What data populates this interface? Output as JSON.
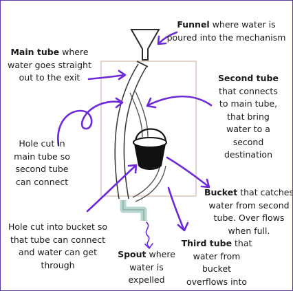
{
  "labels": {
    "funnel": {
      "title": "Funnel",
      "text": " where water  is\npoured into the mechanism"
    },
    "main": {
      "title": "Main tube",
      "text": " where\nwater goes straight\nout to the exit"
    },
    "second": {
      "title": "Second tube",
      "text": "\nthat connects\nto main tube,\nthat bring\nwater to a\nsecond\ndestination"
    },
    "holemain": {
      "title": "",
      "text": "Hole cut in\nmain tube so\nsecond tube\ncan connect"
    },
    "bucket": {
      "title": "Bucket",
      "text": " that catches\nwater from second\ntube. Over flows\nwhen full."
    },
    "holebucket": {
      "title": "",
      "text": "Hole cut into bucket so\nthat tube can connect\nand water can get\nthrough"
    },
    "spout": {
      "title": "Spout",
      "text": " where\nwater is\nexpelled"
    },
    "third": {
      "title": "Third tube",
      "text": " that\nwater from\nbucket\noverflows into"
    }
  },
  "colors": {
    "arrow": "#6d28d9",
    "outline": "#3a3a3a",
    "spout": "#b5d6cf",
    "frame": "#c9a997",
    "bucket": "#111111"
  }
}
